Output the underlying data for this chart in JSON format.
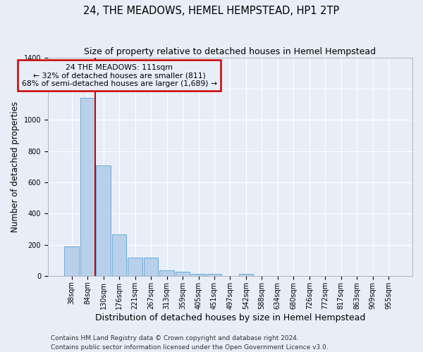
{
  "title": "24, THE MEADOWS, HEMEL HEMPSTEAD, HP1 2TP",
  "subtitle": "Size of property relative to detached houses in Hemel Hempstead",
  "xlabel": "Distribution of detached houses by size in Hemel Hempstead",
  "ylabel": "Number of detached properties",
  "bin_labels": [
    "38sqm",
    "84sqm",
    "130sqm",
    "176sqm",
    "221sqm",
    "267sqm",
    "313sqm",
    "359sqm",
    "405sqm",
    "451sqm",
    "497sqm",
    "542sqm",
    "588sqm",
    "634sqm",
    "680sqm",
    "726sqm",
    "772sqm",
    "817sqm",
    "863sqm",
    "909sqm",
    "955sqm"
  ],
  "bar_heights": [
    190,
    1140,
    710,
    265,
    115,
    115,
    35,
    28,
    14,
    14,
    0,
    14,
    0,
    0,
    0,
    0,
    0,
    0,
    0,
    0,
    0
  ],
  "bar_color": "#b8d0ea",
  "bar_edge_color": "#6aaad4",
  "vline_color": "#cc0000",
  "annotation_text": "24 THE MEADOWS: 111sqm\n← 32% of detached houses are smaller (811)\n68% of semi-detached houses are larger (1,689) →",
  "annotation_box_color": "#cc0000",
  "ylim": [
    0,
    1400
  ],
  "yticks": [
    0,
    200,
    400,
    600,
    800,
    1000,
    1200,
    1400
  ],
  "footer_line1": "Contains HM Land Registry data © Crown copyright and database right 2024.",
  "footer_line2": "Contains public sector information licensed under the Open Government Licence v3.0.",
  "bg_color": "#e8eef8",
  "grid_color": "#ffffff",
  "title_fontsize": 10.5,
  "subtitle_fontsize": 9,
  "tick_fontsize": 7,
  "ylabel_fontsize": 8.5,
  "xlabel_fontsize": 9,
  "footer_fontsize": 6.5
}
